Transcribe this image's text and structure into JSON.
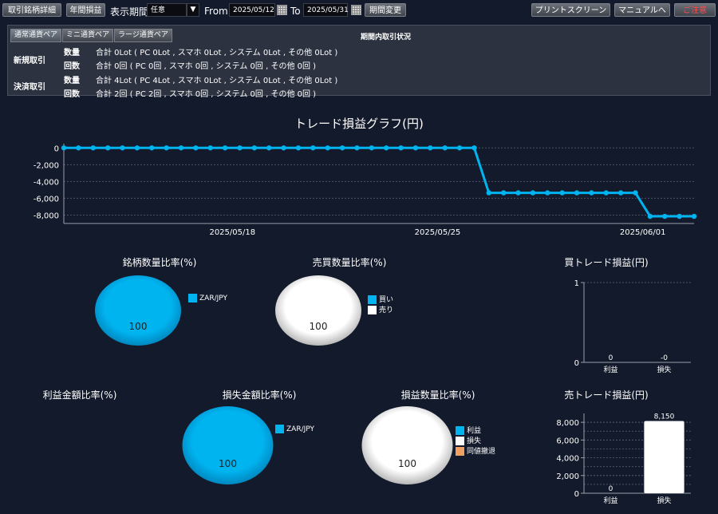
{
  "toolbar": {
    "detail_btn": "取引銘柄詳細",
    "annual_btn": "年間損益",
    "period_label": "表示期間",
    "period_value": "任意",
    "from_label": "From",
    "from_value": "2025/05/12",
    "to_label": "To",
    "to_value": "2025/05/31",
    "change_btn": "期間変更",
    "print_btn": "プリントスクリーン",
    "manual_btn": "マニュアルへ",
    "close_btn": "ご注意"
  },
  "summary": {
    "tabs": [
      "通常通貨ペア",
      "ミニ通貨ペア",
      "ラージ通貨ペア"
    ],
    "heading": "期間内取引状況",
    "new_label": "新規取引",
    "settle_label": "決済取引",
    "qty_label": "数量",
    "count_label": "回数",
    "new_qty": "合計 0Lot ( PC 0Lot , スマホ 0Lot , システム 0Lot , その他 0Lot )",
    "new_count": "合計 0回 ( PC 0回 , スマホ 0回 , システム 0回 , その他 0回 )",
    "settle_qty": "合計 4Lot ( PC 4Lot , スマホ 0Lot , システム 0Lot , その他 0Lot )",
    "settle_count": "合計 2回 ( PC 2回 , スマホ 0回 , システム 0回 , その他 0回 )"
  },
  "colors": {
    "accent": "#00b4f0",
    "white": "#ffffff",
    "orange": "#f0a060",
    "bg": "#131a2b"
  },
  "chart_data": [
    {
      "type": "line",
      "title": "トレード損益グラフ(円)",
      "x_ticks": [
        "2025/05/18",
        "2025/05/25",
        "2025/06/01"
      ],
      "y_ticks": [
        "0",
        "-2,000",
        "-4,000",
        "-6,000",
        "-8,000"
      ],
      "ylim": [
        -9000,
        500
      ],
      "series": [
        {
          "values": [
            0,
            0,
            0,
            0,
            0,
            0,
            0,
            0,
            0,
            0,
            0,
            0,
            0,
            0,
            0,
            0,
            0,
            0,
            0,
            0,
            0,
            0,
            0,
            0,
            0,
            0,
            0,
            0,
            0,
            -5350,
            -5350,
            -5350,
            -5350,
            -5350,
            -5350,
            -5350,
            -5350,
            -5350,
            -5350,
            -5350,
            -8150,
            -8150,
            -8150,
            -8150
          ]
        }
      ]
    },
    {
      "type": "pie",
      "title": "銘柄数量比率(%)",
      "legend": [
        "ZAR/JPY"
      ],
      "values": [
        100
      ],
      "label": "100"
    },
    {
      "type": "pie",
      "title": "売買数量比率(%)",
      "legend": [
        "買い",
        "売り"
      ],
      "values": [
        0,
        100
      ],
      "label": "100"
    },
    {
      "type": "bar",
      "title": "買トレード損益(円)",
      "categories": [
        "利益",
        "損失"
      ],
      "values": [
        0,
        0
      ],
      "value_labels": [
        "0",
        "-0"
      ],
      "y_ticks": [
        "0",
        "1"
      ],
      "ylim": [
        0,
        1
      ]
    },
    {
      "type": "pie",
      "title": "利益金額比率(%)",
      "values": []
    },
    {
      "type": "pie",
      "title": "損失金額比率(%)",
      "legend": [
        "ZAR/JPY"
      ],
      "values": [
        100
      ],
      "label": "100"
    },
    {
      "type": "pie",
      "title": "損益数量比率(%)",
      "legend": [
        "利益",
        "損失",
        "同値撤退"
      ],
      "values": [
        0,
        100,
        0
      ],
      "label": "100"
    },
    {
      "type": "bar",
      "title": "売トレード損益(円)",
      "categories": [
        "利益",
        "損失"
      ],
      "values": [
        0,
        8150
      ],
      "value_labels": [
        "0",
        "8,150"
      ],
      "y_ticks": [
        "0",
        "2,000",
        "4,000",
        "6,000",
        "8,000"
      ],
      "ylim": [
        0,
        9000
      ]
    }
  ]
}
